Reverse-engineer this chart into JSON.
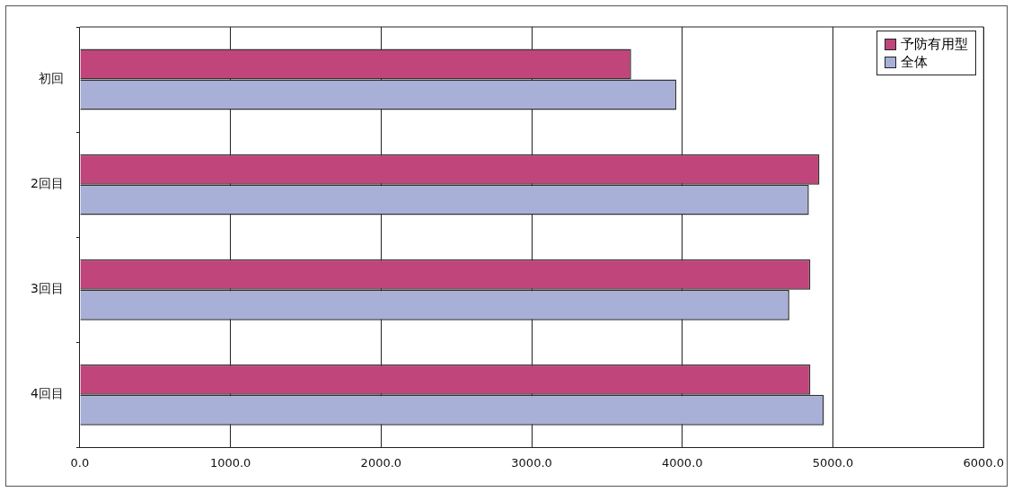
{
  "chart_data": {
    "type": "bar",
    "orientation": "horizontal",
    "categories": [
      "初回",
      "2回目",
      "3回目",
      "4回目"
    ],
    "series": [
      {
        "name": "予防有用型",
        "color": "#c0457a",
        "values": [
          3660,
          4910,
          4850,
          4850
        ]
      },
      {
        "name": "全体",
        "color": "#a8b0d8",
        "values": [
          3960,
          4840,
          4710,
          4940
        ]
      }
    ],
    "xlim": [
      0,
      6000
    ],
    "xticks": [
      {
        "value": 0,
        "label": "0.0"
      },
      {
        "value": 1000,
        "label": "1000.0"
      },
      {
        "value": 2000,
        "label": "2000.0"
      },
      {
        "value": 3000,
        "label": "3000.0"
      },
      {
        "value": 4000,
        "label": "4000.0"
      },
      {
        "value": 5000,
        "label": "5000.0"
      },
      {
        "value": 6000,
        "label": "6000.0"
      }
    ],
    "grid": "x",
    "legend": "top right"
  }
}
